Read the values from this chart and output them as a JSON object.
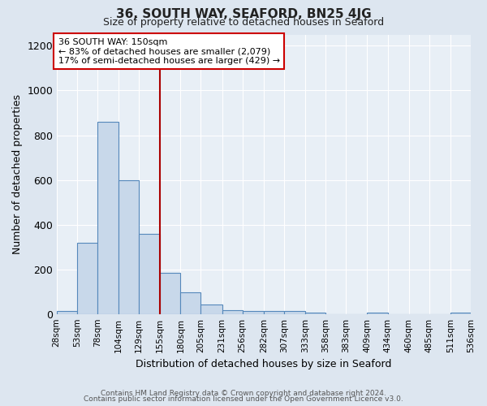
{
  "title": "36, SOUTH WAY, SEAFORD, BN25 4JG",
  "subtitle": "Size of property relative to detached houses in Seaford",
  "xlabel": "Distribution of detached houses by size in Seaford",
  "ylabel": "Number of detached properties",
  "tick_labels": [
    "28sqm",
    "53sqm",
    "78sqm",
    "104sqm",
    "129sqm",
    "155sqm",
    "180sqm",
    "205sqm",
    "231sqm",
    "256sqm",
    "282sqm",
    "307sqm",
    "333sqm",
    "358sqm",
    "383sqm",
    "409sqm",
    "434sqm",
    "460sqm",
    "485sqm",
    "511sqm",
    "536sqm"
  ],
  "bin_edges": [
    28,
    53,
    78,
    104,
    129,
    155,
    180,
    205,
    231,
    256,
    282,
    307,
    333,
    358,
    383,
    409,
    434,
    460,
    485,
    511,
    536
  ],
  "bar_heights": [
    15,
    320,
    860,
    600,
    360,
    185,
    100,
    45,
    20,
    15,
    15,
    15,
    10,
    0,
    0,
    10,
    0,
    0,
    0,
    10
  ],
  "bar_color": "#c8d8ea",
  "bar_edge_color": "#5588bb",
  "vline_x": 155,
  "vline_color": "#aa0000",
  "annotation_text": "36 SOUTH WAY: 150sqm\n← 83% of detached houses are smaller (2,079)\n17% of semi-detached houses are larger (429) →",
  "annotation_box_color": "#ffffff",
  "annotation_box_edge": "#cc0000",
  "ylim": [
    0,
    1250
  ],
  "yticks": [
    0,
    200,
    400,
    600,
    800,
    1000,
    1200
  ],
  "bg_color": "#dde6f0",
  "plot_bg_color": "#e8eff6",
  "grid_color": "#ffffff",
  "footer_line1": "Contains HM Land Registry data © Crown copyright and database right 2024.",
  "footer_line2": "Contains public sector information licensed under the Open Government Licence v3.0."
}
